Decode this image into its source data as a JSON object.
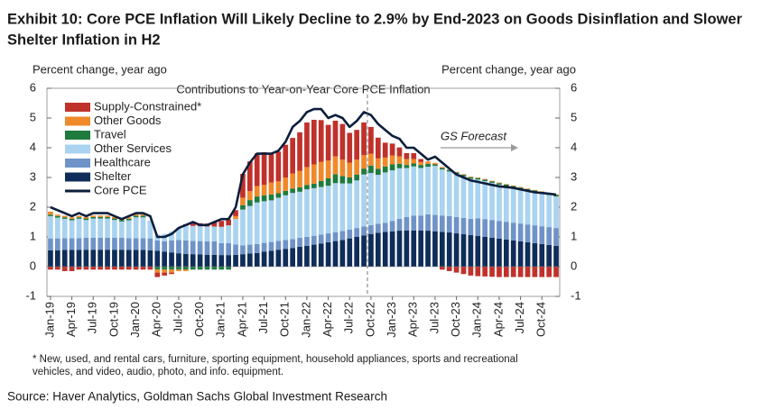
{
  "chart_data": {
    "type": "bar",
    "title": [
      "Exhibit 10: Core PCE Inflation Will Likely Decline to 2.9% by End-2023 on Goods Disinflation and Slower",
      "Shelter Inflation in H2"
    ],
    "subtitle": "Contributions to Year-on-Year Core PCE Inflation",
    "ylabel": "Percent change, year ago",
    "y2label": "Percent change, year ago",
    "annotation": "GS Forecast",
    "footnote": [
      "* New, used, and rental cars, furniture, sporting equipment, household appliances, sports and recreational",
      "vehicles, and video, audio, photo, and info. equipment."
    ],
    "source": "Source: Haver Analytics, Goldman Sachs Global Investment Research",
    "categories": [
      "Jan-19",
      null,
      null,
      "Apr-19",
      null,
      null,
      "Jul-19",
      null,
      null,
      "Oct-19",
      null,
      null,
      "Jan-20",
      null,
      null,
      "Apr-20",
      null,
      null,
      "Jul-20",
      null,
      null,
      "Oct-20",
      null,
      null,
      "Jan-21",
      null,
      null,
      "Apr-21",
      null,
      null,
      "Jul-21",
      null,
      null,
      "Oct-21",
      null,
      null,
      "Jan-22",
      null,
      null,
      "Apr-22",
      null,
      null,
      "Jul-22",
      null,
      null,
      "Oct-22",
      null,
      null,
      "Jan-23",
      null,
      null,
      "Apr-23",
      null,
      null,
      "Jul-23",
      null,
      null,
      "Oct-23",
      null,
      null,
      "Jan-24",
      null,
      null,
      "Apr-24",
      null,
      null,
      "Jul-24",
      null,
      null,
      "Oct-24",
      null,
      null
    ],
    "series": [
      {
        "name": "Supply-Constrained*",
        "color": "#c0312b",
        "kind": "bar",
        "values": [
          -0.1,
          -0.1,
          -0.15,
          -0.15,
          -0.1,
          -0.1,
          -0.1,
          -0.1,
          -0.1,
          -0.1,
          -0.1,
          -0.1,
          -0.1,
          -0.1,
          -0.1,
          -0.15,
          -0.1,
          -0.05,
          0,
          0.05,
          0.1,
          0.1,
          0.1,
          0.15,
          0.2,
          0.2,
          0.2,
          0.8,
          1.0,
          1.1,
          1.1,
          1.0,
          1.0,
          1.1,
          1.2,
          1.3,
          1.5,
          1.5,
          1.4,
          1.2,
          1.2,
          1.2,
          1.0,
          1.0,
          1.1,
          0.9,
          0.7,
          0.5,
          0.4,
          0.3,
          0.2,
          0.2,
          0.1,
          0,
          0,
          -0.1,
          -0.15,
          -0.2,
          -0.25,
          -0.3,
          -0.32,
          -0.33,
          -0.34,
          -0.35,
          -0.35,
          -0.35,
          -0.35,
          -0.35,
          -0.35,
          -0.35,
          -0.35,
          -0.35
        ]
      },
      {
        "name": "Other Goods",
        "color": "#f0892a",
        "kind": "bar",
        "values": [
          0.1,
          0.05,
          0.05,
          0.05,
          0.05,
          0.05,
          0.05,
          0.05,
          0.05,
          0.05,
          0.05,
          0.05,
          0.05,
          0.05,
          0,
          -0.1,
          -0.1,
          -0.1,
          -0.05,
          -0.05,
          0,
          0,
          0,
          0,
          0,
          0,
          0.1,
          0.25,
          0.3,
          0.35,
          0.35,
          0.4,
          0.4,
          0.45,
          0.5,
          0.55,
          0.6,
          0.65,
          0.65,
          0.6,
          0.6,
          0.55,
          0.5,
          0.5,
          0.45,
          0.4,
          0.35,
          0.3,
          0.3,
          0.25,
          0.2,
          0.15,
          0.1,
          0.08,
          0.05,
          0.03,
          0.02,
          0.02,
          0.02,
          0.02,
          0.02,
          0.02,
          0.02,
          0.02,
          0.02,
          0.02,
          0.02,
          0.02,
          0.02,
          0.02,
          0.02,
          0.02
        ]
      },
      {
        "name": "Travel",
        "color": "#1e7b3e",
        "kind": "bar",
        "values": [
          0.05,
          0.05,
          0.05,
          0.05,
          0.05,
          0.05,
          0.05,
          0.05,
          0.05,
          0.05,
          0.05,
          0.05,
          0.05,
          0.05,
          0,
          -0.1,
          -0.1,
          -0.1,
          -0.1,
          -0.1,
          -0.1,
          -0.1,
          -0.1,
          -0.1,
          -0.1,
          -0.1,
          0,
          0.15,
          0.2,
          0.2,
          0.2,
          0.2,
          0.15,
          0.15,
          0.15,
          0.15,
          0.15,
          0.15,
          0.2,
          0.25,
          0.3,
          0.25,
          0.2,
          0.2,
          0.2,
          0.25,
          0.2,
          0.2,
          0.2,
          0.15,
          0.1,
          0.1,
          0.1,
          0.1,
          0.05,
          0.05,
          0.05,
          0.05,
          0.05,
          0.05,
          0.05,
          0.05,
          0.05,
          0.05,
          0.05,
          0.05,
          0.05,
          0.05,
          0.05,
          0.05,
          0.05,
          0.05
        ]
      },
      {
        "name": "Other Services",
        "color": "#a9d3f0",
        "kind": "bar",
        "values": [
          0.75,
          0.7,
          0.65,
          0.6,
          0.65,
          0.6,
          0.65,
          0.65,
          0.65,
          0.6,
          0.55,
          0.6,
          0.7,
          0.7,
          0.6,
          0.2,
          0.25,
          0.3,
          0.4,
          0.5,
          0.5,
          0.5,
          0.5,
          0.5,
          0.55,
          0.6,
          0.85,
          1.2,
          1.3,
          1.4,
          1.4,
          1.4,
          1.45,
          1.5,
          1.55,
          1.55,
          1.6,
          1.6,
          1.6,
          1.6,
          1.65,
          1.6,
          1.55,
          1.6,
          1.75,
          1.75,
          1.65,
          1.7,
          1.7,
          1.7,
          1.65,
          1.65,
          1.6,
          1.6,
          1.65,
          1.55,
          1.5,
          1.45,
          1.4,
          1.35,
          1.3,
          1.28,
          1.25,
          1.22,
          1.2,
          1.18,
          1.16,
          1.14,
          1.12,
          1.1,
          1.08,
          1.06
        ]
      },
      {
        "name": "Healthcare",
        "color": "#6f93c8",
        "kind": "bar",
        "values": [
          0.4,
          0.4,
          0.4,
          0.4,
          0.4,
          0.4,
          0.4,
          0.4,
          0.4,
          0.4,
          0.4,
          0.4,
          0.4,
          0.4,
          0.4,
          0.35,
          0.35,
          0.4,
          0.45,
          0.45,
          0.45,
          0.45,
          0.45,
          0.45,
          0.4,
          0.4,
          0.35,
          0.3,
          0.3,
          0.3,
          0.3,
          0.3,
          0.3,
          0.3,
          0.3,
          0.3,
          0.3,
          0.3,
          0.3,
          0.3,
          0.3,
          0.3,
          0.3,
          0.3,
          0.3,
          0.3,
          0.3,
          0.3,
          0.35,
          0.4,
          0.45,
          0.5,
          0.5,
          0.55,
          0.55,
          0.55,
          0.55,
          0.55,
          0.55,
          0.55,
          0.6,
          0.6,
          0.6,
          0.6,
          0.6,
          0.6,
          0.6,
          0.6,
          0.6,
          0.6,
          0.6,
          0.6
        ]
      },
      {
        "name": "Shelter",
        "color": "#0f2d5a",
        "kind": "bar",
        "values": [
          0.55,
          0.55,
          0.56,
          0.56,
          0.56,
          0.57,
          0.57,
          0.57,
          0.57,
          0.57,
          0.57,
          0.56,
          0.56,
          0.56,
          0.55,
          0.53,
          0.5,
          0.48,
          0.45,
          0.43,
          0.42,
          0.41,
          0.4,
          0.4,
          0.39,
          0.39,
          0.4,
          0.42,
          0.44,
          0.46,
          0.5,
          0.53,
          0.57,
          0.6,
          0.63,
          0.67,
          0.7,
          0.74,
          0.78,
          0.82,
          0.86,
          0.9,
          0.95,
          1.0,
          1.05,
          1.1,
          1.14,
          1.17,
          1.19,
          1.21,
          1.22,
          1.22,
          1.22,
          1.21,
          1.19,
          1.17,
          1.15,
          1.12,
          1.09,
          1.06,
          1.03,
          1.0,
          0.97,
          0.94,
          0.91,
          0.88,
          0.85,
          0.82,
          0.79,
          0.76,
          0.73,
          0.7
        ]
      },
      {
        "name": "Core PCE",
        "color": "#0c1e3c",
        "kind": "line",
        "values": [
          2.0,
          1.9,
          1.8,
          1.7,
          1.8,
          1.7,
          1.8,
          1.8,
          1.8,
          1.7,
          1.6,
          1.7,
          1.8,
          1.8,
          1.7,
          1.0,
          1.0,
          1.1,
          1.3,
          1.4,
          1.5,
          1.4,
          1.4,
          1.5,
          1.6,
          1.6,
          2.0,
          3.1,
          3.5,
          3.8,
          3.8,
          3.8,
          3.9,
          4.2,
          4.7,
          4.9,
          5.2,
          5.3,
          5.3,
          5.0,
          5.1,
          5.0,
          4.7,
          4.9,
          5.2,
          5.1,
          4.8,
          4.6,
          4.4,
          4.3,
          4.0,
          4.0,
          3.8,
          3.6,
          3.7,
          3.5,
          3.3,
          3.1,
          3.0,
          2.9,
          2.85,
          2.8,
          2.75,
          2.7,
          2.68,
          2.65,
          2.6,
          2.55,
          2.5,
          2.48,
          2.45,
          2.42
        ]
      }
    ],
    "ylim": [
      -1,
      6
    ],
    "yticks": [
      -1,
      0,
      1,
      2,
      3,
      4,
      5,
      6
    ],
    "y2lim": [
      -1,
      6
    ],
    "y2ticks": [
      -1,
      0,
      1,
      2,
      3,
      4,
      5,
      6
    ],
    "legend": "upper left"
  }
}
